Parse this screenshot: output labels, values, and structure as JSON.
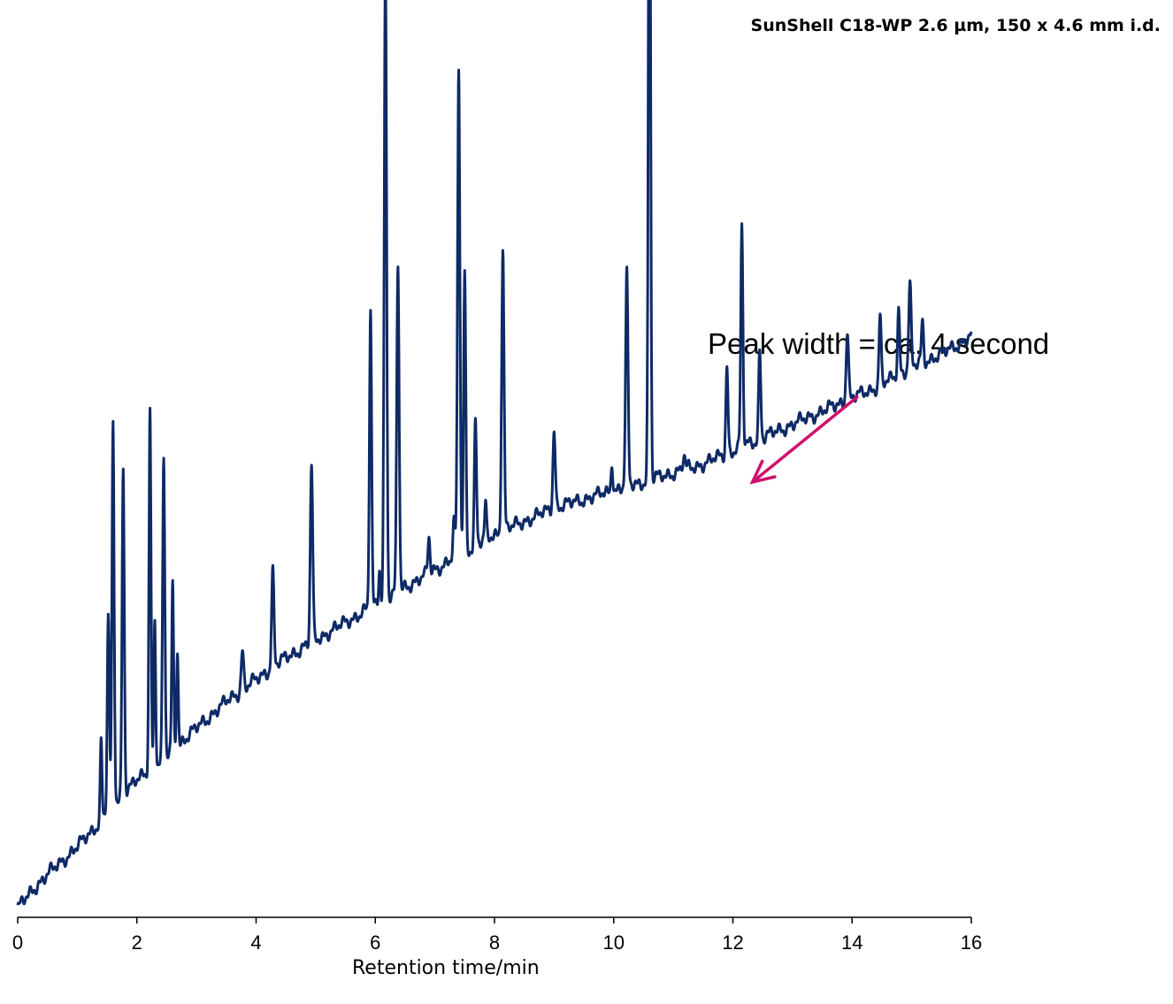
{
  "chart_data": {
    "type": "line",
    "title": "SunShell C18-WP   2.6 µm, 150 x 4.6 mm i.d.",
    "xlabel": "Retention time/min",
    "ylabel": "",
    "xlim": [
      0,
      16
    ],
    "ylim": [
      0,
      100
    ],
    "xticks": [
      "0",
      "2",
      "4",
      "6",
      "8",
      "10",
      "12",
      "14",
      "16"
    ],
    "grid": false,
    "annotation": {
      "text": "Peak width = ca. 4 second",
      "points_to_x": 12.15
    },
    "colors": {
      "trace": "#0e2a66",
      "arrow": "#d0106a",
      "axis": "#000000"
    },
    "baseline": [
      [
        0,
        1
      ],
      [
        0.3,
        3.5
      ],
      [
        0.6,
        5.5
      ],
      [
        1.0,
        8
      ],
      [
        1.4,
        11
      ],
      [
        1.8,
        14.5
      ],
      [
        2.2,
        16.5
      ],
      [
        2.6,
        19
      ],
      [
        3.0,
        21.5
      ],
      [
        3.5,
        24.5
      ],
      [
        4.0,
        27
      ],
      [
        4.5,
        29.5
      ],
      [
        5.0,
        31.5
      ],
      [
        5.5,
        33.5
      ],
      [
        6.0,
        35.5
      ],
      [
        6.5,
        37.5
      ],
      [
        7.0,
        39.5
      ],
      [
        7.5,
        41.5
      ],
      [
        8.0,
        43.5
      ],
      [
        8.5,
        45
      ],
      [
        9.0,
        46.5
      ],
      [
        9.5,
        47.5
      ],
      [
        10.0,
        48.5
      ],
      [
        10.5,
        49.5
      ],
      [
        11.0,
        50.5
      ],
      [
        11.5,
        51.5
      ],
      [
        12.0,
        53
      ],
      [
        12.5,
        54.5
      ],
      [
        13.0,
        56
      ],
      [
        13.5,
        57.5
      ],
      [
        14.0,
        59
      ],
      [
        14.5,
        60.5
      ],
      [
        15.0,
        62.5
      ],
      [
        15.5,
        64
      ],
      [
        16.0,
        66
      ]
    ],
    "peaks": [
      {
        "rt": 1.4,
        "height": 9,
        "width": 0.015
      },
      {
        "rt": 1.52,
        "height": 22,
        "width": 0.018
      },
      {
        "rt": 1.6,
        "height": 43,
        "width": 0.018
      },
      {
        "rt": 1.77,
        "height": 37,
        "width": 0.018
      },
      {
        "rt": 2.22,
        "height": 41,
        "width": 0.017
      },
      {
        "rt": 2.3,
        "height": 17,
        "width": 0.015
      },
      {
        "rt": 2.45,
        "height": 34,
        "width": 0.018
      },
      {
        "rt": 2.6,
        "height": 19,
        "width": 0.015
      },
      {
        "rt": 2.68,
        "height": 11,
        "width": 0.015
      },
      {
        "rt": 3.77,
        "height": 4.5,
        "width": 0.02
      },
      {
        "rt": 4.28,
        "height": 11,
        "width": 0.02
      },
      {
        "rt": 4.93,
        "height": 20,
        "width": 0.02
      },
      {
        "rt": 5.92,
        "height": 34,
        "width": 0.018
      },
      {
        "rt": 6.07,
        "height": 4,
        "width": 0.015
      },
      {
        "rt": 6.17,
        "height": 72,
        "width": 0.02
      },
      {
        "rt": 6.38,
        "height": 37,
        "width": 0.02
      },
      {
        "rt": 6.9,
        "height": 4,
        "width": 0.018
      },
      {
        "rt": 7.32,
        "height": 4,
        "width": 0.018
      },
      {
        "rt": 7.4,
        "height": 55,
        "width": 0.02
      },
      {
        "rt": 7.5,
        "height": 32,
        "width": 0.018
      },
      {
        "rt": 7.68,
        "height": 14,
        "width": 0.018
      },
      {
        "rt": 7.85,
        "height": 4,
        "width": 0.015
      },
      {
        "rt": 8.14,
        "height": 32,
        "width": 0.02
      },
      {
        "rt": 9.0,
        "height": 9,
        "width": 0.02
      },
      {
        "rt": 9.97,
        "height": 3.5,
        "width": 0.015
      },
      {
        "rt": 10.22,
        "height": 24,
        "width": 0.02
      },
      {
        "rt": 10.6,
        "height": 88,
        "width": 0.018
      },
      {
        "rt": 11.18,
        "height": 1.5,
        "width": 0.02
      },
      {
        "rt": 11.9,
        "height": 10,
        "width": 0.018
      },
      {
        "rt": 12.15,
        "height": 25,
        "width": 0.018
      },
      {
        "rt": 12.45,
        "height": 10,
        "width": 0.018
      },
      {
        "rt": 13.92,
        "height": 8,
        "width": 0.02
      },
      {
        "rt": 14.47,
        "height": 8,
        "width": 0.018
      },
      {
        "rt": 14.78,
        "height": 7.5,
        "width": 0.018
      },
      {
        "rt": 14.97,
        "height": 9.5,
        "width": 0.02
      },
      {
        "rt": 15.18,
        "height": 4.5,
        "width": 0.018
      }
    ]
  }
}
